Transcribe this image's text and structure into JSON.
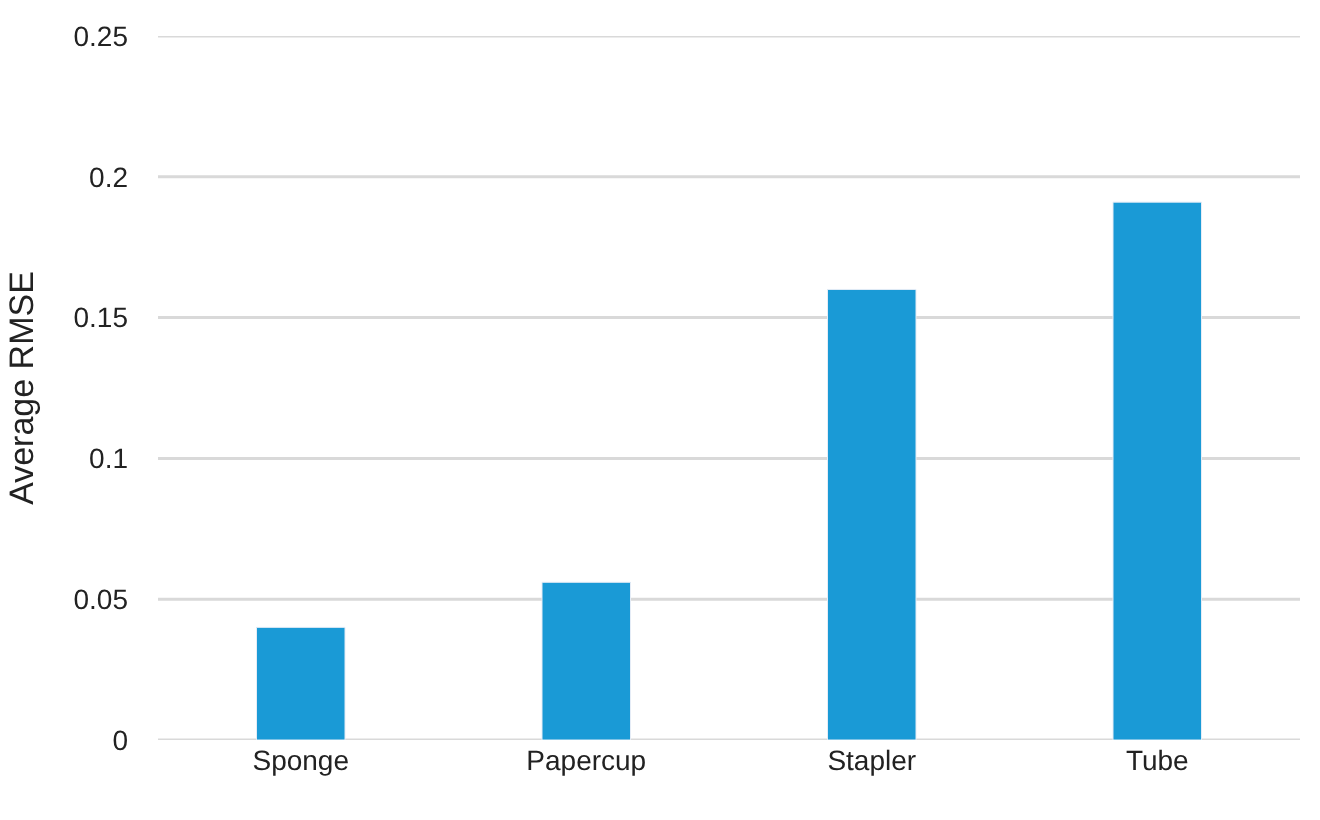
{
  "chart_data": {
    "type": "bar",
    "ylabel": "Average RMSE",
    "categories": [
      "Sponge",
      "Papercup",
      "Stapler",
      "Tube"
    ],
    "values": [
      0.04,
      0.056,
      0.16,
      0.191
    ],
    "color": "#1a9ad6",
    "ylim": [
      0,
      0.25
    ],
    "yticks": [
      0,
      {
        "value": 0.05,
        "label": "0.05"
      },
      {
        "value": 0.1,
        "label": "0.1"
      },
      {
        "value": 0.15,
        "label": "0.15"
      },
      {
        "value": 0.2,
        "label": "0.2"
      },
      {
        "value": 0.25,
        "label": "0.25"
      }
    ],
    "grid": "y"
  }
}
